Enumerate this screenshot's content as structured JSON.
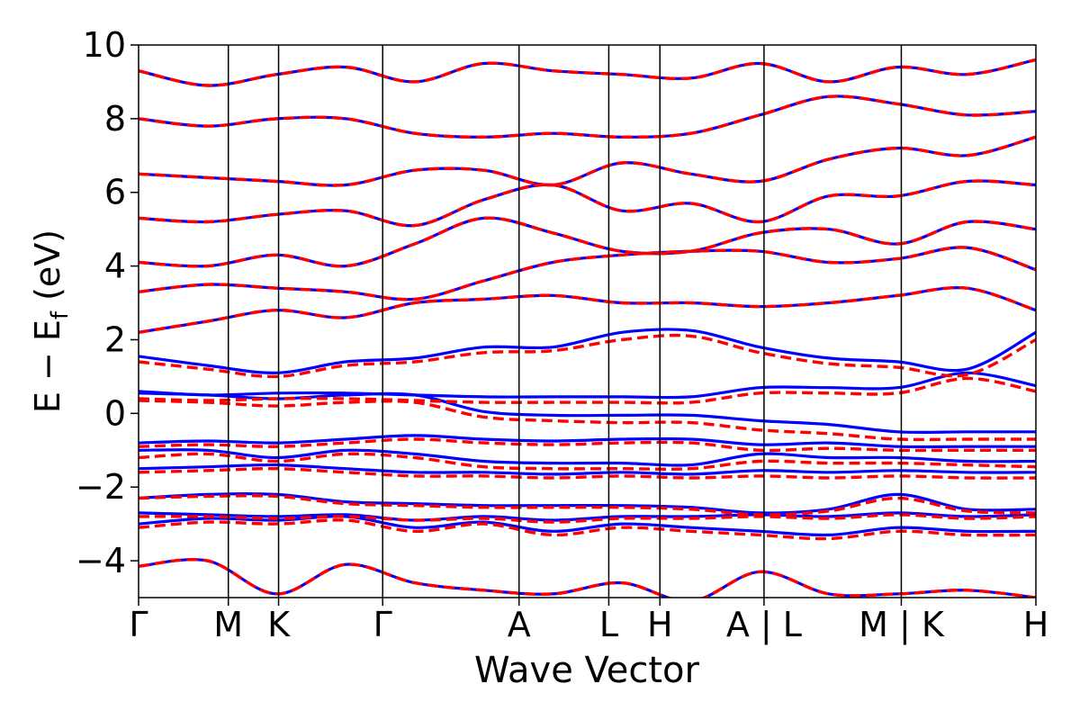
{
  "chart_data": {
    "type": "line",
    "title": "",
    "xlabel": "Wave Vector",
    "ylabel": "E − E",
    "ylabel_sub": "f",
    "ylabel_unit": " (eV)",
    "ylim": [
      -5,
      10
    ],
    "yticks": [
      {
        "value": 10,
        "label": "10"
      },
      {
        "value": 8,
        "label": "8"
      },
      {
        "value": 6,
        "label": "6"
      },
      {
        "value": 4,
        "label": "4"
      },
      {
        "value": 2,
        "label": "2"
      },
      {
        "value": 0,
        "label": "0"
      },
      {
        "value": -2,
        "label": "−2"
      },
      {
        "value": -4,
        "label": "−4"
      }
    ],
    "xlim": [
      0,
      1
    ],
    "kpath": [
      {
        "label": "Γ",
        "x": 0.0
      },
      {
        "label": "M",
        "x": 0.1
      },
      {
        "label": "K",
        "x": 0.156
      },
      {
        "label": "Γ",
        "x": 0.272
      },
      {
        "label": "A",
        "x": 0.424
      },
      {
        "label": "L",
        "x": 0.524
      },
      {
        "label": "H",
        "x": 0.581
      },
      {
        "label": "A | L",
        "x": 0.697
      },
      {
        "label": "M | K",
        "x": 0.85
      },
      {
        "label": "H",
        "x": 1.0
      }
    ],
    "grid": false,
    "legend": "none",
    "series": [
      {
        "style": "solid",
        "color": "#0000ff",
        "bands": [
          [
            -4.15,
            -4.0,
            -4.9,
            -4.1,
            -4.6,
            -4.8,
            -4.9,
            -4.6,
            -5.1,
            -4.3,
            -4.9,
            -4.9,
            -4.8,
            -5.0
          ],
          [
            -3.0,
            -2.85,
            -2.9,
            -2.8,
            -3.1,
            -2.95,
            -3.2,
            -3.0,
            -3.1,
            -3.2,
            -3.3,
            -3.1,
            -3.2,
            -3.2
          ],
          [
            -2.7,
            -2.75,
            -2.8,
            -2.75,
            -2.9,
            -2.8,
            -2.9,
            -2.8,
            -2.8,
            -2.75,
            -2.8,
            -2.7,
            -2.8,
            -2.75
          ],
          [
            -2.3,
            -2.2,
            -2.2,
            -2.4,
            -2.45,
            -2.5,
            -2.5,
            -2.5,
            -2.55,
            -2.7,
            -2.6,
            -2.2,
            -2.6,
            -2.6
          ],
          [
            -1.5,
            -1.45,
            -1.4,
            -1.5,
            -1.6,
            -1.6,
            -1.65,
            -1.6,
            -1.65,
            -1.55,
            -1.6,
            -1.55,
            -1.6,
            -1.6
          ],
          [
            -1.0,
            -1.0,
            -1.2,
            -1.0,
            -1.1,
            -1.3,
            -1.35,
            -1.35,
            -1.4,
            -1.1,
            -1.2,
            -1.2,
            -1.3,
            -1.3
          ],
          [
            -0.8,
            -0.75,
            -0.8,
            -0.7,
            -0.6,
            -0.7,
            -0.75,
            -0.7,
            -0.7,
            -0.85,
            -0.8,
            -0.9,
            -0.9,
            -0.9
          ],
          [
            0.55,
            0.5,
            0.4,
            0.5,
            0.5,
            0.05,
            -0.05,
            -0.05,
            -0.05,
            -0.2,
            -0.3,
            -0.5,
            -0.5,
            -0.5
          ],
          [
            0.6,
            0.5,
            0.55,
            0.55,
            0.5,
            0.45,
            0.45,
            0.45,
            0.45,
            0.7,
            0.7,
            0.7,
            1.1,
            0.75
          ],
          [
            1.55,
            1.3,
            1.1,
            1.4,
            1.5,
            1.8,
            1.8,
            2.2,
            2.25,
            1.8,
            1.5,
            1.4,
            1.2,
            2.2
          ],
          [
            2.2,
            2.5,
            2.8,
            2.6,
            3.0,
            3.1,
            3.2,
            3.0,
            3.0,
            2.9,
            3.0,
            3.2,
            3.4,
            2.8
          ],
          [
            3.3,
            3.5,
            3.4,
            3.3,
            3.1,
            3.6,
            4.1,
            4.3,
            4.4,
            4.4,
            4.1,
            4.2,
            4.5,
            3.9
          ],
          [
            4.1,
            4.0,
            4.3,
            4.0,
            4.6,
            5.3,
            4.9,
            4.4,
            4.4,
            4.9,
            5.0,
            4.6,
            5.2,
            5.0
          ],
          [
            5.3,
            5.2,
            5.4,
            5.5,
            5.1,
            5.8,
            6.2,
            5.5,
            5.7,
            5.2,
            5.9,
            5.9,
            6.3,
            6.2
          ],
          [
            6.5,
            6.4,
            6.3,
            6.2,
            6.6,
            6.6,
            6.2,
            6.8,
            6.5,
            6.3,
            6.9,
            7.2,
            7.0,
            7.5
          ],
          [
            8.0,
            7.8,
            8.0,
            8.0,
            7.6,
            7.5,
            7.6,
            7.5,
            7.6,
            8.1,
            8.6,
            8.4,
            8.1,
            8.2
          ],
          [
            9.3,
            8.9,
            9.2,
            9.4,
            9.0,
            9.5,
            9.3,
            9.2,
            9.1,
            9.5,
            9.0,
            9.4,
            9.2,
            9.6
          ]
        ]
      },
      {
        "style": "dashed",
        "color": "#ff0000",
        "bands": [
          [
            -4.15,
            -4.0,
            -4.9,
            -4.1,
            -4.6,
            -4.8,
            -4.9,
            -4.6,
            -5.1,
            -4.3,
            -4.9,
            -4.9,
            -4.8,
            -5.0
          ],
          [
            -3.1,
            -2.95,
            -3.0,
            -2.9,
            -3.2,
            -3.0,
            -3.3,
            -3.1,
            -3.2,
            -3.3,
            -3.4,
            -3.2,
            -3.3,
            -3.3
          ],
          [
            -2.8,
            -2.8,
            -2.85,
            -2.8,
            -2.9,
            -2.85,
            -2.95,
            -2.85,
            -2.85,
            -2.8,
            -2.85,
            -2.75,
            -2.85,
            -2.8
          ],
          [
            -2.3,
            -2.25,
            -2.25,
            -2.45,
            -2.5,
            -2.55,
            -2.55,
            -2.55,
            -2.6,
            -2.75,
            -2.65,
            -2.3,
            -2.65,
            -2.7
          ],
          [
            -1.6,
            -1.55,
            -1.5,
            -1.6,
            -1.7,
            -1.7,
            -1.75,
            -1.7,
            -1.75,
            -1.7,
            -1.75,
            -1.7,
            -1.75,
            -1.75
          ],
          [
            -1.2,
            -1.1,
            -1.3,
            -1.1,
            -1.2,
            -1.45,
            -1.5,
            -1.5,
            -1.5,
            -1.3,
            -1.35,
            -1.35,
            -1.4,
            -1.45
          ],
          [
            -0.9,
            -0.85,
            -0.9,
            -0.8,
            -0.7,
            -0.8,
            -0.85,
            -0.8,
            -0.8,
            -1.0,
            -0.95,
            -1.0,
            -1.0,
            -1.0
          ],
          [
            0.35,
            0.3,
            0.2,
            0.3,
            0.3,
            -0.1,
            -0.2,
            -0.25,
            -0.25,
            -0.45,
            -0.55,
            -0.7,
            -0.7,
            -0.7
          ],
          [
            0.4,
            0.35,
            0.4,
            0.4,
            0.35,
            0.3,
            0.3,
            0.3,
            0.3,
            0.55,
            0.55,
            0.55,
            0.95,
            0.6
          ],
          [
            1.4,
            1.2,
            1.0,
            1.3,
            1.4,
            1.65,
            1.7,
            2.0,
            2.1,
            1.65,
            1.35,
            1.25,
            1.05,
            2.0
          ],
          [
            2.2,
            2.5,
            2.8,
            2.6,
            3.0,
            3.1,
            3.2,
            3.0,
            3.0,
            2.9,
            3.0,
            3.2,
            3.4,
            2.8
          ],
          [
            3.3,
            3.5,
            3.4,
            3.3,
            3.1,
            3.6,
            4.1,
            4.3,
            4.4,
            4.4,
            4.1,
            4.2,
            4.5,
            3.9
          ],
          [
            4.1,
            4.0,
            4.3,
            4.0,
            4.6,
            5.3,
            4.9,
            4.4,
            4.4,
            4.9,
            5.0,
            4.6,
            5.2,
            5.0
          ],
          [
            5.3,
            5.2,
            5.4,
            5.5,
            5.1,
            5.8,
            6.2,
            5.5,
            5.7,
            5.2,
            5.9,
            5.9,
            6.3,
            6.2
          ],
          [
            6.5,
            6.4,
            6.3,
            6.2,
            6.6,
            6.6,
            6.2,
            6.8,
            6.5,
            6.3,
            6.9,
            7.2,
            7.0,
            7.5
          ],
          [
            8.0,
            7.8,
            8.0,
            8.0,
            7.6,
            7.5,
            7.6,
            7.5,
            7.6,
            8.1,
            8.6,
            8.4,
            8.1,
            8.2
          ],
          [
            9.3,
            8.9,
            9.2,
            9.4,
            9.0,
            9.5,
            9.3,
            9.2,
            9.1,
            9.5,
            9.0,
            9.4,
            9.2,
            9.6
          ]
        ]
      }
    ]
  }
}
